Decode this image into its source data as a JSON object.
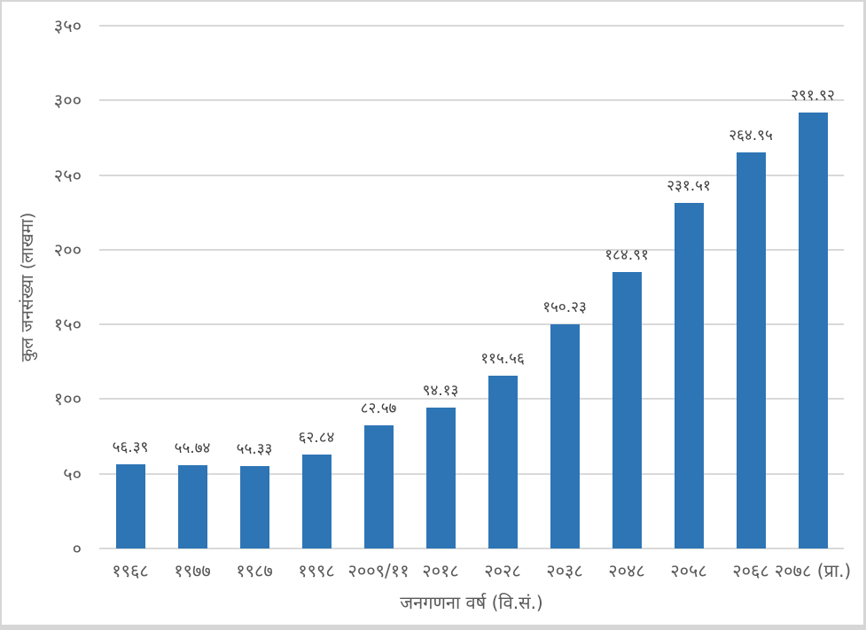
{
  "chart_data": {
    "type": "bar",
    "title": "",
    "xlabel": "जनगणना वर्ष (वि.सं.)",
    "ylabel": "कुल जनसंख्या (लाखमा)",
    "categories": [
      "१९६८",
      "१९७७",
      "१९८७",
      "१९९८",
      "२००९/११",
      "२०१८",
      "२०२८",
      "२०३८",
      "२०४८",
      "२०५८",
      "२०६८",
      "२०७८ (प्रा.)"
    ],
    "values": [
      56.39,
      55.74,
      55.33,
      62.84,
      82.57,
      94.13,
      115.56,
      150.23,
      184.91,
      231.51,
      264.95,
      291.92
    ],
    "value_labels": [
      "५६.३९",
      "५५.७४",
      "५५.३३",
      "६२.८४",
      "८२.५७",
      "९४.१३",
      "११५.५६",
      "१५०.२३",
      "१८४.९१",
      "२३१.५१",
      "२६४.९५",
      "२९१.९२"
    ],
    "yticks": [
      0,
      50,
      100,
      150,
      200,
      250,
      300,
      350
    ],
    "ytick_labels": [
      "०",
      "५०",
      "१००",
      "१५०",
      "२००",
      "२५०",
      "३००",
      "३५०"
    ],
    "ylim": [
      0,
      350
    ],
    "grid": true,
    "legend": false,
    "bar_color": "#2E75B6",
    "gridline_color": "#D9D9D9",
    "axis_text_color": "#595959",
    "data_label_color": "#404040"
  }
}
